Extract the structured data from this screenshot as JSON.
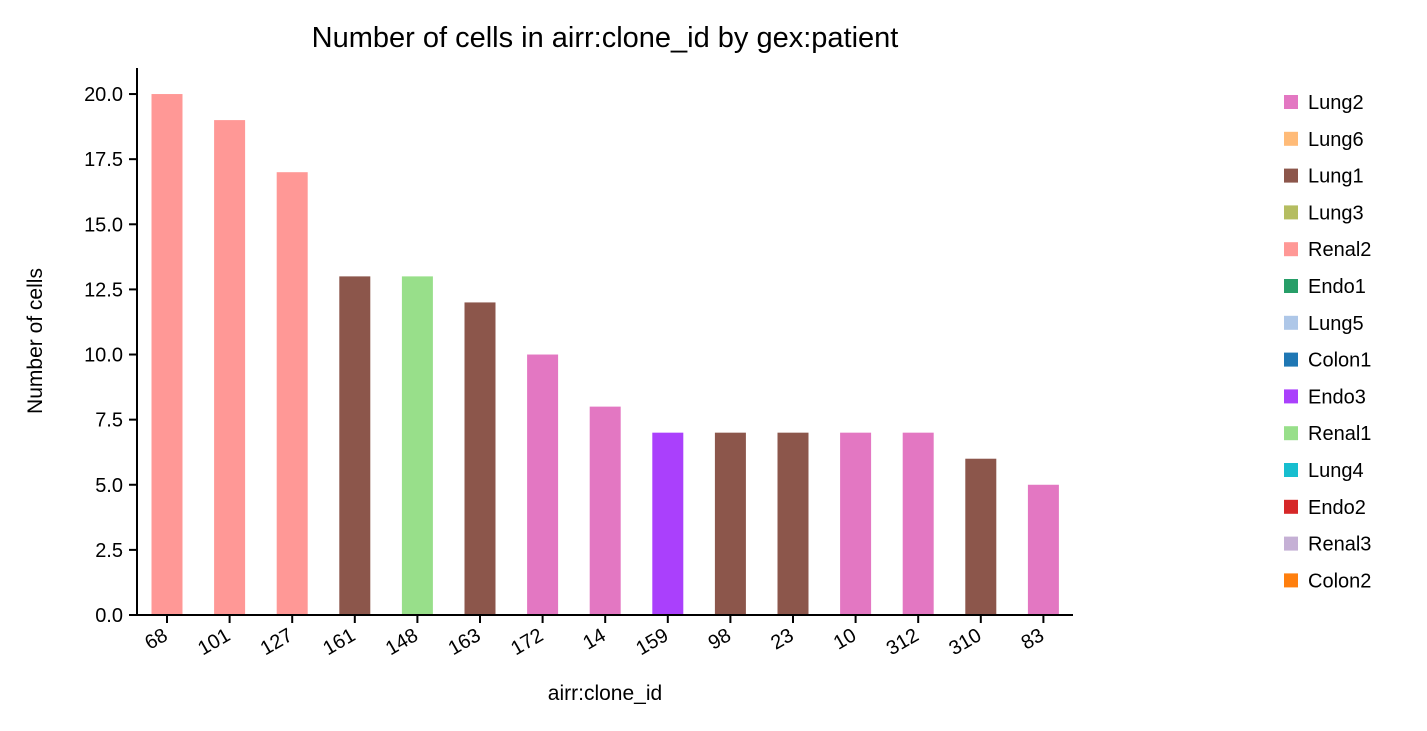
{
  "chart_data": {
    "type": "bar",
    "title": "Number of cells in airr:clone_id by gex:patient",
    "xlabel": "airr:clone_id",
    "ylabel": "Number of cells",
    "ylim": [
      0,
      21
    ],
    "yticks": [
      0.0,
      2.5,
      5.0,
      7.5,
      10.0,
      12.5,
      15.0,
      17.5,
      20.0
    ],
    "ytick_labels": [
      "0.0",
      "2.5",
      "5.0",
      "7.5",
      "10.0",
      "12.5",
      "15.0",
      "17.5",
      "20.0"
    ],
    "grid": false,
    "legend_position": "right",
    "categories": [
      "68",
      "101",
      "127",
      "161",
      "148",
      "163",
      "172",
      "14",
      "159",
      "98",
      "23",
      "10",
      "312",
      "310",
      "83"
    ],
    "values": [
      20,
      19,
      17,
      13,
      13,
      12,
      10,
      8,
      7,
      7,
      7,
      7,
      7,
      6,
      5
    ],
    "bar_groups": [
      "Renal2",
      "Renal2",
      "Renal2",
      "Lung1",
      "Renal1",
      "Lung1",
      "Lung2",
      "Lung2",
      "Endo3",
      "Lung1",
      "Lung1",
      "Lung2",
      "Lung2",
      "Lung1",
      "Lung2"
    ],
    "legend": [
      {
        "name": "Lung2",
        "color": "#e377c2"
      },
      {
        "name": "Lung6",
        "color": "#ffbb78"
      },
      {
        "name": "Lung1",
        "color": "#8c564b"
      },
      {
        "name": "Lung3",
        "color": "#b5bd61"
      },
      {
        "name": "Renal2",
        "color": "#ff9896"
      },
      {
        "name": "Endo1",
        "color": "#279e68"
      },
      {
        "name": "Lung5",
        "color": "#aec7e8"
      },
      {
        "name": "Colon1",
        "color": "#1f77b4"
      },
      {
        "name": "Endo3",
        "color": "#aa40fc"
      },
      {
        "name": "Renal1",
        "color": "#98df8a"
      },
      {
        "name": "Lung4",
        "color": "#17becf"
      },
      {
        "name": "Endo2",
        "color": "#d62728"
      },
      {
        "name": "Renal3",
        "color": "#c5b0d5"
      },
      {
        "name": "Colon2",
        "color": "#ff7f0e"
      }
    ]
  }
}
